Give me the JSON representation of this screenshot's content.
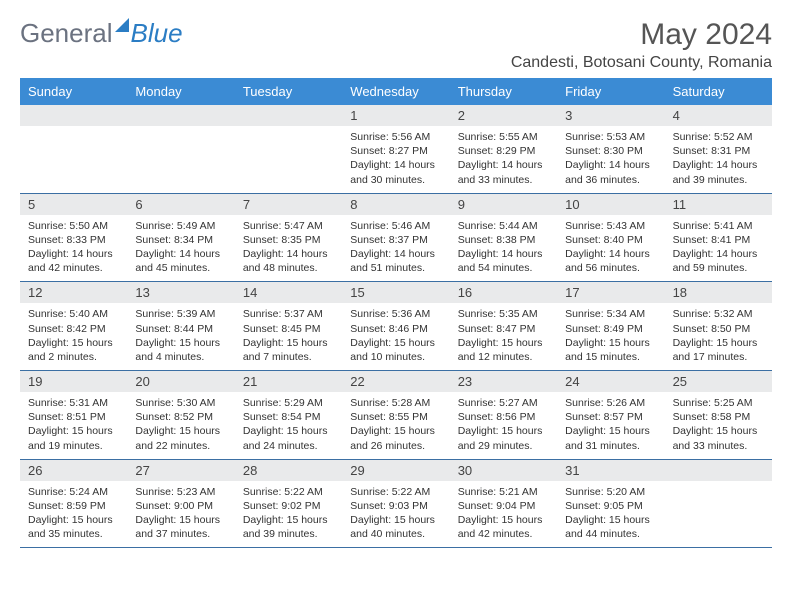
{
  "brand": {
    "part1": "General",
    "part2": "Blue"
  },
  "title": "May 2024",
  "location": "Candesti, Botosani County, Romania",
  "colors": {
    "header_bg": "#3b8bd4",
    "header_text": "#ffffff",
    "daynum_bg": "#e9eaeb",
    "week_border": "#3b6fa3",
    "text": "#333333",
    "title_color": "#555555"
  },
  "day_names": [
    "Sunday",
    "Monday",
    "Tuesday",
    "Wednesday",
    "Thursday",
    "Friday",
    "Saturday"
  ],
  "weeks": [
    {
      "nums": [
        "",
        "",
        "",
        "1",
        "2",
        "3",
        "4"
      ],
      "cells": [
        null,
        null,
        null,
        {
          "sunrise": "Sunrise: 5:56 AM",
          "sunset": "Sunset: 8:27 PM",
          "daylight": "Daylight: 14 hours and 30 minutes."
        },
        {
          "sunrise": "Sunrise: 5:55 AM",
          "sunset": "Sunset: 8:29 PM",
          "daylight": "Daylight: 14 hours and 33 minutes."
        },
        {
          "sunrise": "Sunrise: 5:53 AM",
          "sunset": "Sunset: 8:30 PM",
          "daylight": "Daylight: 14 hours and 36 minutes."
        },
        {
          "sunrise": "Sunrise: 5:52 AM",
          "sunset": "Sunset: 8:31 PM",
          "daylight": "Daylight: 14 hours and 39 minutes."
        }
      ]
    },
    {
      "nums": [
        "5",
        "6",
        "7",
        "8",
        "9",
        "10",
        "11"
      ],
      "cells": [
        {
          "sunrise": "Sunrise: 5:50 AM",
          "sunset": "Sunset: 8:33 PM",
          "daylight": "Daylight: 14 hours and 42 minutes."
        },
        {
          "sunrise": "Sunrise: 5:49 AM",
          "sunset": "Sunset: 8:34 PM",
          "daylight": "Daylight: 14 hours and 45 minutes."
        },
        {
          "sunrise": "Sunrise: 5:47 AM",
          "sunset": "Sunset: 8:35 PM",
          "daylight": "Daylight: 14 hours and 48 minutes."
        },
        {
          "sunrise": "Sunrise: 5:46 AM",
          "sunset": "Sunset: 8:37 PM",
          "daylight": "Daylight: 14 hours and 51 minutes."
        },
        {
          "sunrise": "Sunrise: 5:44 AM",
          "sunset": "Sunset: 8:38 PM",
          "daylight": "Daylight: 14 hours and 54 minutes."
        },
        {
          "sunrise": "Sunrise: 5:43 AM",
          "sunset": "Sunset: 8:40 PM",
          "daylight": "Daylight: 14 hours and 56 minutes."
        },
        {
          "sunrise": "Sunrise: 5:41 AM",
          "sunset": "Sunset: 8:41 PM",
          "daylight": "Daylight: 14 hours and 59 minutes."
        }
      ]
    },
    {
      "nums": [
        "12",
        "13",
        "14",
        "15",
        "16",
        "17",
        "18"
      ],
      "cells": [
        {
          "sunrise": "Sunrise: 5:40 AM",
          "sunset": "Sunset: 8:42 PM",
          "daylight": "Daylight: 15 hours and 2 minutes."
        },
        {
          "sunrise": "Sunrise: 5:39 AM",
          "sunset": "Sunset: 8:44 PM",
          "daylight": "Daylight: 15 hours and 4 minutes."
        },
        {
          "sunrise": "Sunrise: 5:37 AM",
          "sunset": "Sunset: 8:45 PM",
          "daylight": "Daylight: 15 hours and 7 minutes."
        },
        {
          "sunrise": "Sunrise: 5:36 AM",
          "sunset": "Sunset: 8:46 PM",
          "daylight": "Daylight: 15 hours and 10 minutes."
        },
        {
          "sunrise": "Sunrise: 5:35 AM",
          "sunset": "Sunset: 8:47 PM",
          "daylight": "Daylight: 15 hours and 12 minutes."
        },
        {
          "sunrise": "Sunrise: 5:34 AM",
          "sunset": "Sunset: 8:49 PM",
          "daylight": "Daylight: 15 hours and 15 minutes."
        },
        {
          "sunrise": "Sunrise: 5:32 AM",
          "sunset": "Sunset: 8:50 PM",
          "daylight": "Daylight: 15 hours and 17 minutes."
        }
      ]
    },
    {
      "nums": [
        "19",
        "20",
        "21",
        "22",
        "23",
        "24",
        "25"
      ],
      "cells": [
        {
          "sunrise": "Sunrise: 5:31 AM",
          "sunset": "Sunset: 8:51 PM",
          "daylight": "Daylight: 15 hours and 19 minutes."
        },
        {
          "sunrise": "Sunrise: 5:30 AM",
          "sunset": "Sunset: 8:52 PM",
          "daylight": "Daylight: 15 hours and 22 minutes."
        },
        {
          "sunrise": "Sunrise: 5:29 AM",
          "sunset": "Sunset: 8:54 PM",
          "daylight": "Daylight: 15 hours and 24 minutes."
        },
        {
          "sunrise": "Sunrise: 5:28 AM",
          "sunset": "Sunset: 8:55 PM",
          "daylight": "Daylight: 15 hours and 26 minutes."
        },
        {
          "sunrise": "Sunrise: 5:27 AM",
          "sunset": "Sunset: 8:56 PM",
          "daylight": "Daylight: 15 hours and 29 minutes."
        },
        {
          "sunrise": "Sunrise: 5:26 AM",
          "sunset": "Sunset: 8:57 PM",
          "daylight": "Daylight: 15 hours and 31 minutes."
        },
        {
          "sunrise": "Sunrise: 5:25 AM",
          "sunset": "Sunset: 8:58 PM",
          "daylight": "Daylight: 15 hours and 33 minutes."
        }
      ]
    },
    {
      "nums": [
        "26",
        "27",
        "28",
        "29",
        "30",
        "31",
        ""
      ],
      "cells": [
        {
          "sunrise": "Sunrise: 5:24 AM",
          "sunset": "Sunset: 8:59 PM",
          "daylight": "Daylight: 15 hours and 35 minutes."
        },
        {
          "sunrise": "Sunrise: 5:23 AM",
          "sunset": "Sunset: 9:00 PM",
          "daylight": "Daylight: 15 hours and 37 minutes."
        },
        {
          "sunrise": "Sunrise: 5:22 AM",
          "sunset": "Sunset: 9:02 PM",
          "daylight": "Daylight: 15 hours and 39 minutes."
        },
        {
          "sunrise": "Sunrise: 5:22 AM",
          "sunset": "Sunset: 9:03 PM",
          "daylight": "Daylight: 15 hours and 40 minutes."
        },
        {
          "sunrise": "Sunrise: 5:21 AM",
          "sunset": "Sunset: 9:04 PM",
          "daylight": "Daylight: 15 hours and 42 minutes."
        },
        {
          "sunrise": "Sunrise: 5:20 AM",
          "sunset": "Sunset: 9:05 PM",
          "daylight": "Daylight: 15 hours and 44 minutes."
        },
        null
      ]
    }
  ]
}
